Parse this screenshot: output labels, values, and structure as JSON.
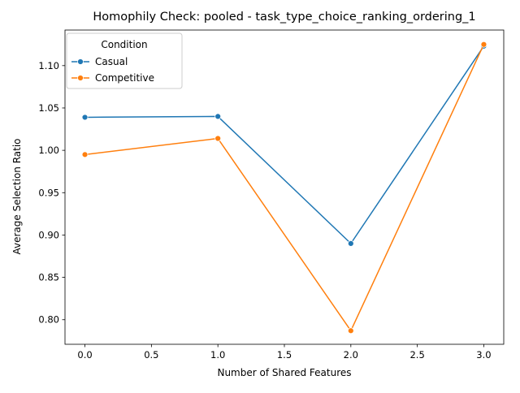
{
  "chart_data": {
    "type": "line",
    "title": "Homophily Check: pooled - task_type_choice_ranking_ordering_1",
    "xlabel": "Number of Shared Features",
    "ylabel": "Average Selection Ratio",
    "x": [
      0,
      1,
      2,
      3
    ],
    "xlim": [
      -0.15,
      3.15
    ],
    "ylim": [
      0.771,
      1.142
    ],
    "xticks": [
      0.0,
      0.5,
      1.0,
      1.5,
      2.0,
      2.5,
      3.0
    ],
    "xtick_labels": [
      "0.0",
      "0.5",
      "1.0",
      "1.5",
      "2.0",
      "2.5",
      "3.0"
    ],
    "yticks": [
      0.8,
      0.85,
      0.9,
      0.95,
      1.0,
      1.05,
      1.1
    ],
    "ytick_labels": [
      "0.80",
      "0.85",
      "0.90",
      "0.95",
      "1.00",
      "1.05",
      "1.10"
    ],
    "grid": false,
    "legend": {
      "title": "Condition",
      "placement": "top-left"
    },
    "series": [
      {
        "name": "Casual",
        "color": "#1f77b4",
        "values": [
          1.039,
          1.04,
          0.89,
          1.123
        ]
      },
      {
        "name": "Competitive",
        "color": "#ff7f0e",
        "values": [
          0.995,
          1.014,
          0.787,
          1.125
        ]
      }
    ]
  }
}
